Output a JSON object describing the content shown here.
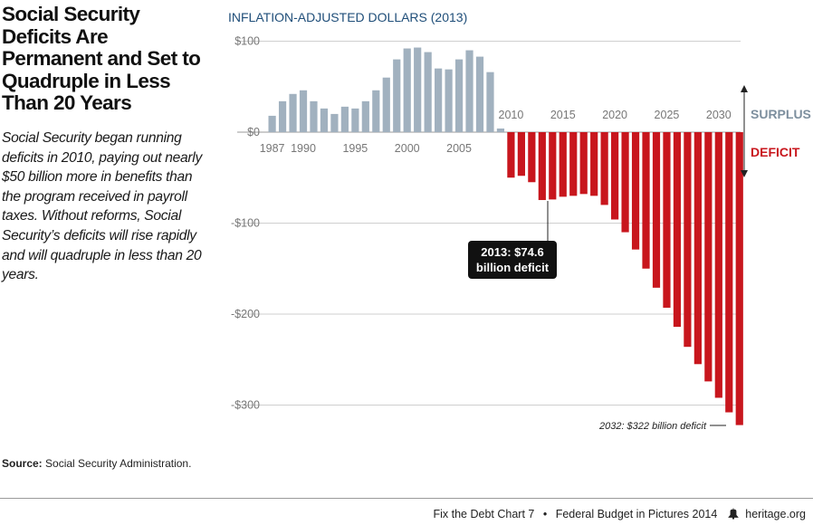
{
  "title": "Social Security Deficits Are Permanent and Set to Quadruple in Less Than 20 Years",
  "description": "Social Security began running deficits in 2010, paying out nearly $50 billion more in benefits than the program received in payroll taxes. Without reforms, Social Security’s deficits will rise rapidly and will quadruple in less than 20 years.",
  "source_label": "Source:",
  "source_text": "Social Security Administration.",
  "footer": {
    "chart_label": "Fix the Debt Chart 7",
    "separator": "•",
    "publication": "Federal Budget in Pictures 2014",
    "site": "heritage.org",
    "logo_icon": "liberty-bell-icon"
  },
  "chart_data": {
    "type": "bar",
    "subtitle": "INFLATION-ADJUSTED DOLLARS (2013)",
    "x": [
      1987,
      1988,
      1989,
      1990,
      1991,
      1992,
      1993,
      1994,
      1995,
      1996,
      1997,
      1998,
      1999,
      2000,
      2001,
      2002,
      2003,
      2004,
      2005,
      2006,
      2007,
      2008,
      2009,
      2010,
      2011,
      2012,
      2013,
      2014,
      2015,
      2016,
      2017,
      2018,
      2019,
      2020,
      2021,
      2022,
      2023,
      2024,
      2025,
      2026,
      2027,
      2028,
      2029,
      2030,
      2031,
      2032
    ],
    "values": [
      18,
      34,
      42,
      46,
      34,
      26,
      20,
      28,
      26,
      34,
      46,
      60,
      80,
      92,
      93,
      88,
      70,
      69,
      80,
      90,
      83,
      66,
      4,
      -50,
      -48,
      -55,
      -74.6,
      -74,
      -71,
      -70,
      -68,
      -70,
      -80,
      -96,
      -110,
      -129,
      -150,
      -171,
      -193,
      -214,
      -236,
      -255,
      -274,
      -292,
      -308,
      -322
    ],
    "positive_color": "#a1b1bf",
    "negative_color": "#c8161d",
    "y_ticks": [
      100,
      0,
      -100,
      -200,
      -300
    ],
    "y_tick_labels": [
      "$100",
      "$0",
      "-$100",
      "-$200",
      "-$300"
    ],
    "x_tick_labels_below": [
      "1987",
      "1990",
      "1995",
      "2000",
      "2005"
    ],
    "x_tick_labels_above": [
      "2010",
      "2015",
      "2020",
      "2025",
      "2030"
    ],
    "ylim": [
      -330,
      100
    ],
    "grid": true,
    "surplus_label": "SURPLUS",
    "deficit_label": "DEFICIT",
    "surplus_color": "#7d8f9e",
    "deficit_color": "#c8161d",
    "annotation_2013": {
      "line1": "2013: $74.6",
      "line2": "billion deficit"
    },
    "annotation_2032": "2032: $322 billion deficit"
  }
}
